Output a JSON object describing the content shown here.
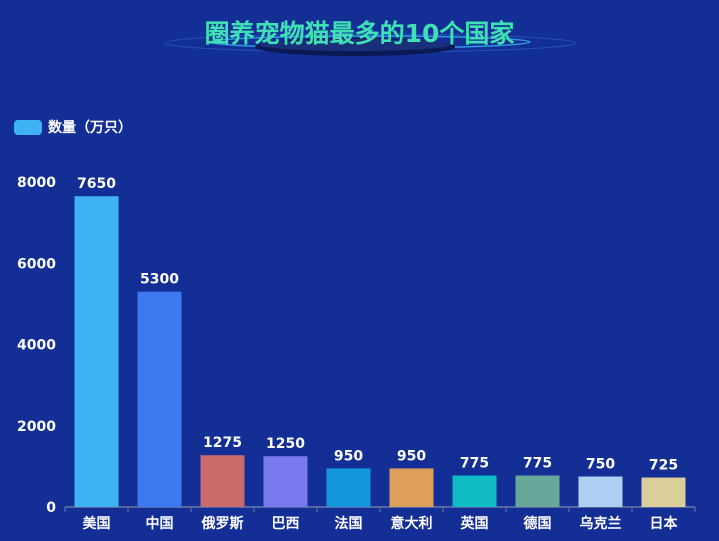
{
  "chart_data": {
    "type": "bar",
    "title": "圈养宠物猫最多的10个国家",
    "legend": {
      "label": "数量（万只）",
      "color": "#3eb2f2",
      "position": "top-left"
    },
    "categories": [
      "美国",
      "中国",
      "俄罗斯",
      "巴西",
      "法国",
      "意大利",
      "英国",
      "德国",
      "乌克兰",
      "日本"
    ],
    "values": [
      7650,
      5300,
      1275,
      1250,
      950,
      950,
      775,
      775,
      750,
      725
    ],
    "colors": [
      "#3eb2f2",
      "#3b7bef",
      "#c96b6b",
      "#7a78ee",
      "#1597dd",
      "#de9e5c",
      "#0fbcc6",
      "#68a89a",
      "#add0f2",
      "#dacf9a"
    ],
    "y_ticks": [
      0,
      2000,
      4000,
      6000,
      8000
    ],
    "ylim": [
      0,
      8000
    ],
    "xlabel": "",
    "ylabel": "",
    "grid": false
  }
}
